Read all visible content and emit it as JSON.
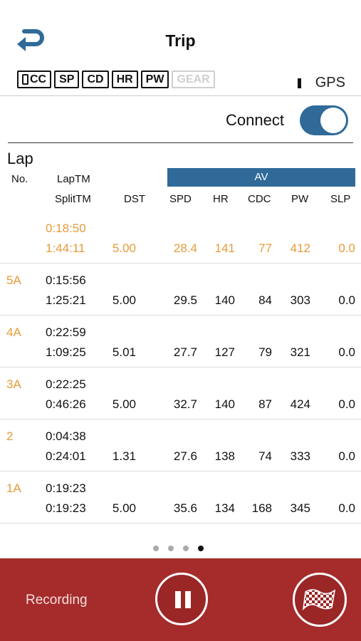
{
  "header": {
    "title": "Trip"
  },
  "sensors": [
    {
      "label": "CC",
      "active": true,
      "has_phone_icon": true
    },
    {
      "label": "SP",
      "active": true
    },
    {
      "label": "CD",
      "active": true
    },
    {
      "label": "HR",
      "active": true
    },
    {
      "label": "PW",
      "active": true
    },
    {
      "label": "GEAR",
      "active": false
    }
  ],
  "gps": {
    "label": "GPS"
  },
  "connect": {
    "label": "Connect",
    "on": true
  },
  "lap": {
    "title": "Lap",
    "columns": {
      "no": "No.",
      "laptm": "LapTM",
      "splittm": "SplitTM",
      "dst": "DST",
      "av": "AV",
      "spd": "SPD",
      "hr": "HR",
      "cdc": "CDC",
      "pw": "PW",
      "slp": "SLP"
    },
    "rows": [
      {
        "no": "",
        "laptm": "0:18:50",
        "splittm": "1:44:11",
        "dst": "5.00",
        "spd": "28.4",
        "hr": "141",
        "cdc": "77",
        "pw": "412",
        "slp": "0.0",
        "current": true
      },
      {
        "no": "5A",
        "laptm": "0:15:56",
        "splittm": "1:25:21",
        "dst": "5.00",
        "spd": "29.5",
        "hr": "140",
        "cdc": "84",
        "pw": "303",
        "slp": "0.0"
      },
      {
        "no": "4A",
        "laptm": "0:22:59",
        "splittm": "1:09:25",
        "dst": "5.01",
        "spd": "27.7",
        "hr": "127",
        "cdc": "79",
        "pw": "321",
        "slp": "0.0"
      },
      {
        "no": "3A",
        "laptm": "0:22:25",
        "splittm": "0:46:26",
        "dst": "5.00",
        "spd": "32.7",
        "hr": "140",
        "cdc": "87",
        "pw": "424",
        "slp": "0.0"
      },
      {
        "no": "2",
        "laptm": "0:04:38",
        "splittm": "0:24:01",
        "dst": "1.31",
        "spd": "27.6",
        "hr": "138",
        "cdc": "74",
        "pw": "333",
        "slp": "0.0"
      },
      {
        "no": "1A",
        "laptm": "0:19:23",
        "splittm": "0:19:23",
        "dst": "5.00",
        "spd": "35.6",
        "hr": "134",
        "cdc": "168",
        "pw": "345",
        "slp": "0.0"
      }
    ]
  },
  "pager": {
    "count": 4,
    "active_index": 3
  },
  "footer": {
    "recording_label": "Recording"
  },
  "colors": {
    "accent": "#2f6a99",
    "highlight": "#e89a38",
    "footer": "#a62b2b"
  },
  "icons": {
    "back": "back-arrow-icon",
    "pause": "pause-icon",
    "flag": "checkered-flag-icon",
    "phone": "phone-icon"
  }
}
